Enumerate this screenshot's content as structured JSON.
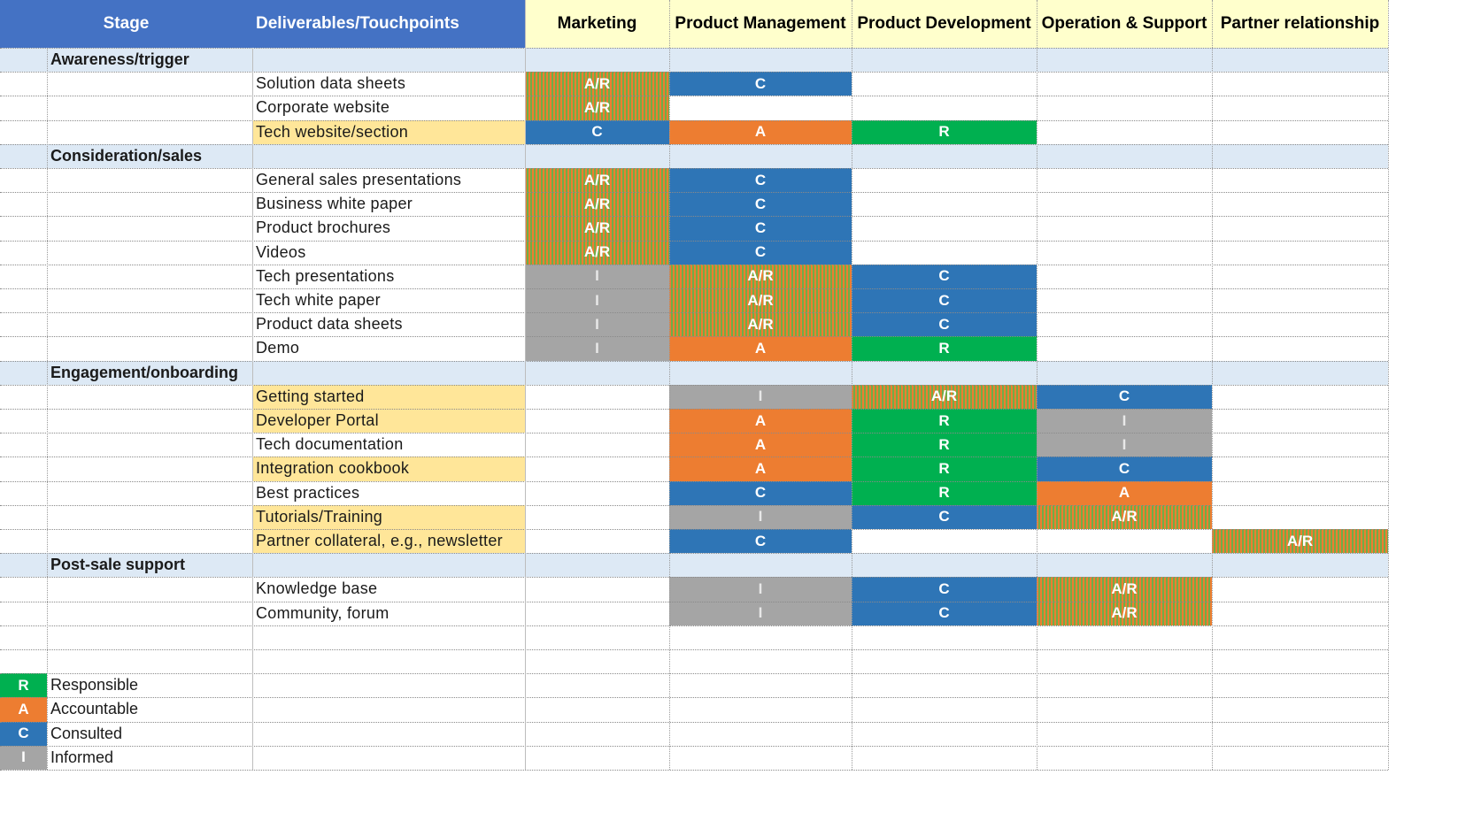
{
  "colors": {
    "R": "#00b050",
    "A": "#ed7d31",
    "C": "#2e75b6",
    "I": "#a5a5a5",
    "AR_stripe_a": "#ed7d31",
    "AR_stripe_b": "#70ad47",
    "header_blue": "#4472c4",
    "header_yellow": "#ffffcc",
    "stage_band": "#dde9f5",
    "highlight": "#ffe699"
  },
  "header": {
    "stage": "Stage",
    "deliverables": "Deliverables/Touchpoints",
    "departments": [
      "Marketing",
      "Product Management",
      "Product Development",
      "Operation & Support",
      "Partner relationship"
    ]
  },
  "stages": [
    {
      "name": "Awareness/trigger",
      "rows": [
        {
          "label": "Solution data sheets",
          "highlight": false,
          "cells": [
            "A/R",
            "C",
            "",
            "",
            ""
          ]
        },
        {
          "label": "Corporate website",
          "highlight": false,
          "cells": [
            "A/R",
            "",
            "",
            "",
            ""
          ]
        },
        {
          "label": "Tech website/section",
          "highlight": true,
          "cells": [
            "C",
            "A",
            "R",
            "",
            ""
          ]
        }
      ]
    },
    {
      "name": "Consideration/sales",
      "rows": [
        {
          "label": "General sales presentations",
          "highlight": false,
          "cells": [
            "A/R",
            "C",
            "",
            "",
            ""
          ]
        },
        {
          "label": "Business white paper",
          "highlight": false,
          "cells": [
            "A/R",
            "C",
            "",
            "",
            ""
          ]
        },
        {
          "label": "Product brochures",
          "highlight": false,
          "cells": [
            "A/R",
            "C",
            "",
            "",
            ""
          ]
        },
        {
          "label": "Videos",
          "highlight": false,
          "cells": [
            "A/R",
            "C",
            "",
            "",
            ""
          ]
        },
        {
          "label": "Tech presentations",
          "highlight": false,
          "cells": [
            "I",
            "A/R",
            "C",
            "",
            ""
          ]
        },
        {
          "label": "Tech white paper",
          "highlight": false,
          "cells": [
            "I",
            "A/R",
            "C",
            "",
            ""
          ]
        },
        {
          "label": "Product data sheets",
          "highlight": false,
          "cells": [
            "I",
            "A/R",
            "C",
            "",
            ""
          ]
        },
        {
          "label": "Demo",
          "highlight": false,
          "cells": [
            "I",
            "A",
            "R",
            "",
            ""
          ]
        }
      ]
    },
    {
      "name": "Engagement/onboarding",
      "rows": [
        {
          "label": "Getting started",
          "highlight": true,
          "cells": [
            "",
            "I",
            "A/R",
            "C",
            ""
          ]
        },
        {
          "label": "Developer Portal",
          "highlight": true,
          "cells": [
            "",
            "A",
            "R",
            "I",
            ""
          ]
        },
        {
          "label": "Tech documentation",
          "highlight": false,
          "cells": [
            "",
            "A",
            "R",
            "I",
            ""
          ]
        },
        {
          "label": "Integration cookbook",
          "highlight": true,
          "cells": [
            "",
            "A",
            "R",
            "C",
            ""
          ]
        },
        {
          "label": "Best practices",
          "highlight": false,
          "cells": [
            "",
            "C",
            "R",
            "A",
            ""
          ]
        },
        {
          "label": "Tutorials/Training",
          "highlight": true,
          "cells": [
            "",
            "I",
            "C",
            "A/R",
            ""
          ]
        },
        {
          "label": "Partner collateral, e.g., newsletter",
          "highlight": true,
          "cells": [
            "",
            "C",
            "",
            "",
            "A/R"
          ]
        }
      ]
    },
    {
      "name": "Post-sale support",
      "rows": [
        {
          "label": "Knowledge base",
          "highlight": false,
          "cells": [
            "",
            "I",
            "C",
            "A/R",
            ""
          ]
        },
        {
          "label": "Community, forum",
          "highlight": false,
          "cells": [
            "",
            "I",
            "C",
            "A/R",
            ""
          ]
        }
      ]
    }
  ],
  "legend": [
    {
      "code": "R",
      "label": "Responsible"
    },
    {
      "code": "A",
      "label": "Accountable"
    },
    {
      "code": "C",
      "label": "Consulted"
    },
    {
      "code": "I",
      "label": "Informed"
    }
  ]
}
